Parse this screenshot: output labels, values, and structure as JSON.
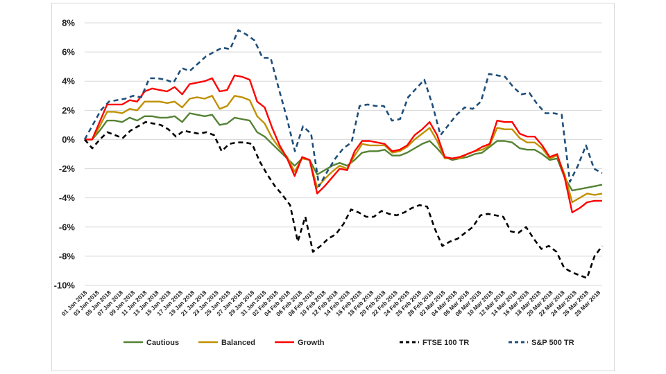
{
  "chart_data": {
    "type": "line",
    "title": "",
    "xlabel": "",
    "ylabel": "",
    "ylim": [
      -10,
      8
    ],
    "y_ticks": [
      "8%",
      "6%",
      "4%",
      "2%",
      "0%",
      "-2%",
      "-4%",
      "-6%",
      "-8%",
      "-10%"
    ],
    "y_tick_values": [
      8,
      6,
      4,
      2,
      0,
      -2,
      -4,
      -6,
      -8,
      -10
    ],
    "x_tick_labels": [
      "01 Jan 2018",
      "03 Jan 2018",
      "05 Jan 2018",
      "07 Jan 2018",
      "09 Jan 2018",
      "11 Jan 2018",
      "13 Jan 2018",
      "15 Jan 2018",
      "17 Jan 2018",
      "19 Jan 2018",
      "21 Jan 2018",
      "23 Jan 2018",
      "25 Jan 2018",
      "27 Jan 2018",
      "29 Jan 2018",
      "31 Jan 2018",
      "02 Feb 2018",
      "04 Feb 2018",
      "06 Feb 2018",
      "08 Feb 2018",
      "10 Feb 2018",
      "12 Feb 2018",
      "14 Feb 2018",
      "16 Feb 2018",
      "18 Feb 2018",
      "20 Feb 2018",
      "22 Feb 2018",
      "24 Feb 2018",
      "26 Feb 2018",
      "28 Feb 2018",
      "02 Mar 2018",
      "04 Mar 2018",
      "06 Mar 2018",
      "08 Mar 2018",
      "10 Mar 2018",
      "12 Mar 2018",
      "14 Mar 2018",
      "16 Mar 2018",
      "18 Mar 2018",
      "20 Mar 2018",
      "22 Mar 2018",
      "24 Mar 2018",
      "26 Mar 2018",
      "28 Mar 2018"
    ],
    "grid": "horizontal",
    "legend_position": "bottom",
    "series": [
      {
        "name": "Cautious",
        "color": "#548235",
        "dash": "solid",
        "values": [
          0.0,
          0.0,
          0.6,
          1.3,
          1.3,
          1.2,
          1.5,
          1.3,
          1.6,
          1.6,
          1.5,
          1.5,
          1.6,
          1.2,
          1.8,
          1.7,
          1.6,
          1.7,
          1.0,
          1.1,
          1.5,
          1.4,
          1.3,
          0.5,
          0.2,
          -0.3,
          -0.8,
          -1.3,
          -1.8,
          -1.3,
          -1.4,
          -2.4,
          -2.1,
          -1.8,
          -1.6,
          -1.8,
          -1.4,
          -0.9,
          -0.8,
          -0.8,
          -0.7,
          -1.1,
          -1.1,
          -0.9,
          -0.6,
          -0.3,
          -0.1,
          -0.6,
          -1.2,
          -1.4,
          -1.3,
          -1.2,
          -1.0,
          -0.9,
          -0.5,
          -0.1,
          -0.1,
          -0.2,
          -0.6,
          -0.7,
          -0.7,
          -1.0,
          -1.4,
          -1.3,
          -2.6,
          -3.5,
          -3.4,
          -3.3,
          -3.2,
          -3.1
        ]
      },
      {
        "name": "Balanced",
        "color": "#bf9000",
        "dash": "solid",
        "values": [
          0.0,
          0.0,
          0.9,
          1.9,
          1.9,
          1.8,
          2.1,
          2.0,
          2.6,
          2.6,
          2.6,
          2.5,
          2.6,
          2.2,
          2.8,
          2.9,
          2.8,
          3.0,
          2.1,
          2.3,
          3.0,
          2.9,
          2.7,
          1.6,
          1.1,
          0.1,
          -0.6,
          -1.2,
          -2.2,
          -1.3,
          -1.4,
          -3.3,
          -2.7,
          -2.2,
          -1.8,
          -2.0,
          -1.1,
          -0.3,
          -0.4,
          -0.4,
          -0.4,
          -0.9,
          -0.8,
          -0.5,
          0.0,
          0.4,
          0.8,
          -0.1,
          -1.3,
          -1.3,
          -1.3,
          -1.0,
          -0.8,
          -0.7,
          -0.4,
          0.8,
          0.7,
          0.7,
          0.1,
          -0.2,
          -0.2,
          -0.6,
          -1.3,
          -1.1,
          -2.4,
          -4.3,
          -4.0,
          -3.7,
          -3.8,
          -3.7
        ]
      },
      {
        "name": "Growth",
        "color": "#ff0000",
        "dash": "solid",
        "values": [
          0.0,
          0.0,
          1.2,
          2.4,
          2.4,
          2.4,
          2.7,
          2.6,
          3.3,
          3.5,
          3.4,
          3.3,
          3.6,
          3.1,
          3.8,
          3.9,
          4.0,
          4.2,
          3.3,
          3.4,
          4.4,
          4.3,
          4.1,
          2.6,
          2.2,
          0.8,
          -0.4,
          -1.3,
          -2.5,
          -1.2,
          -1.4,
          -3.7,
          -3.2,
          -2.6,
          -2.0,
          -2.1,
          -0.8,
          -0.1,
          -0.1,
          -0.2,
          -0.3,
          -0.8,
          -0.7,
          -0.4,
          0.3,
          0.7,
          1.2,
          0.3,
          -1.2,
          -1.3,
          -1.2,
          -1.0,
          -0.8,
          -0.5,
          -0.3,
          1.3,
          1.2,
          1.2,
          0.4,
          0.2,
          0.2,
          -0.4,
          -1.2,
          -1.0,
          -2.6,
          -5.0,
          -4.7,
          -4.3,
          -4.2,
          -4.2
        ]
      },
      {
        "name": "FTSE 100 TR",
        "color": "#000000",
        "dash": "dashed",
        "values": [
          0.0,
          -0.6,
          0.0,
          0.5,
          0.3,
          0.1,
          0.6,
          0.9,
          1.2,
          1.1,
          1.0,
          0.7,
          0.2,
          0.6,
          0.5,
          0.4,
          0.5,
          0.3,
          -0.8,
          -0.3,
          -0.2,
          -0.2,
          -0.3,
          -1.5,
          -2.4,
          -3.2,
          -3.8,
          -4.5,
          -7.0,
          -5.3,
          -7.7,
          -7.3,
          -6.8,
          -6.5,
          -5.8,
          -4.8,
          -5.0,
          -5.3,
          -5.3,
          -4.9,
          -5.1,
          -5.2,
          -5.0,
          -4.7,
          -4.5,
          -4.6,
          -6.1,
          -7.3,
          -7.0,
          -6.8,
          -6.4,
          -6.0,
          -5.2,
          -5.1,
          -5.2,
          -5.3,
          -6.3,
          -6.4,
          -6.0,
          -6.8,
          -7.5,
          -7.3,
          -7.7,
          -8.8,
          -9.1,
          -9.3,
          -9.5,
          -8.0,
          -7.3
        ]
      },
      {
        "name": "S&P 500 TR",
        "color": "#1f4e79",
        "dash": "dashed",
        "values": [
          0.0,
          1.0,
          2.0,
          2.6,
          2.7,
          2.8,
          3.0,
          2.9,
          4.2,
          4.2,
          4.1,
          3.9,
          4.9,
          4.7,
          5.2,
          5.7,
          6.0,
          6.3,
          6.2,
          7.5,
          7.2,
          6.8,
          5.6,
          5.6,
          3.5,
          1.5,
          -0.8,
          0.9,
          0.4,
          -3.2,
          -2.2,
          -1.3,
          -0.6,
          -0.2,
          2.3,
          2.4,
          2.3,
          2.3,
          1.3,
          1.4,
          2.9,
          3.5,
          4.1,
          2.4,
          0.3,
          1.0,
          1.7,
          2.2,
          2.1,
          2.6,
          4.5,
          4.4,
          4.3,
          3.6,
          3.1,
          3.2,
          2.4,
          1.8,
          1.8,
          1.7,
          -2.9,
          -1.8,
          -0.4,
          -2.0,
          -2.3
        ]
      }
    ]
  },
  "legend": {
    "items": [
      {
        "label": "Cautious"
      },
      {
        "label": "Balanced"
      },
      {
        "label": "Growth"
      },
      {
        "label": "FTSE 100 TR"
      },
      {
        "label": "S&P 500 TR"
      }
    ]
  }
}
